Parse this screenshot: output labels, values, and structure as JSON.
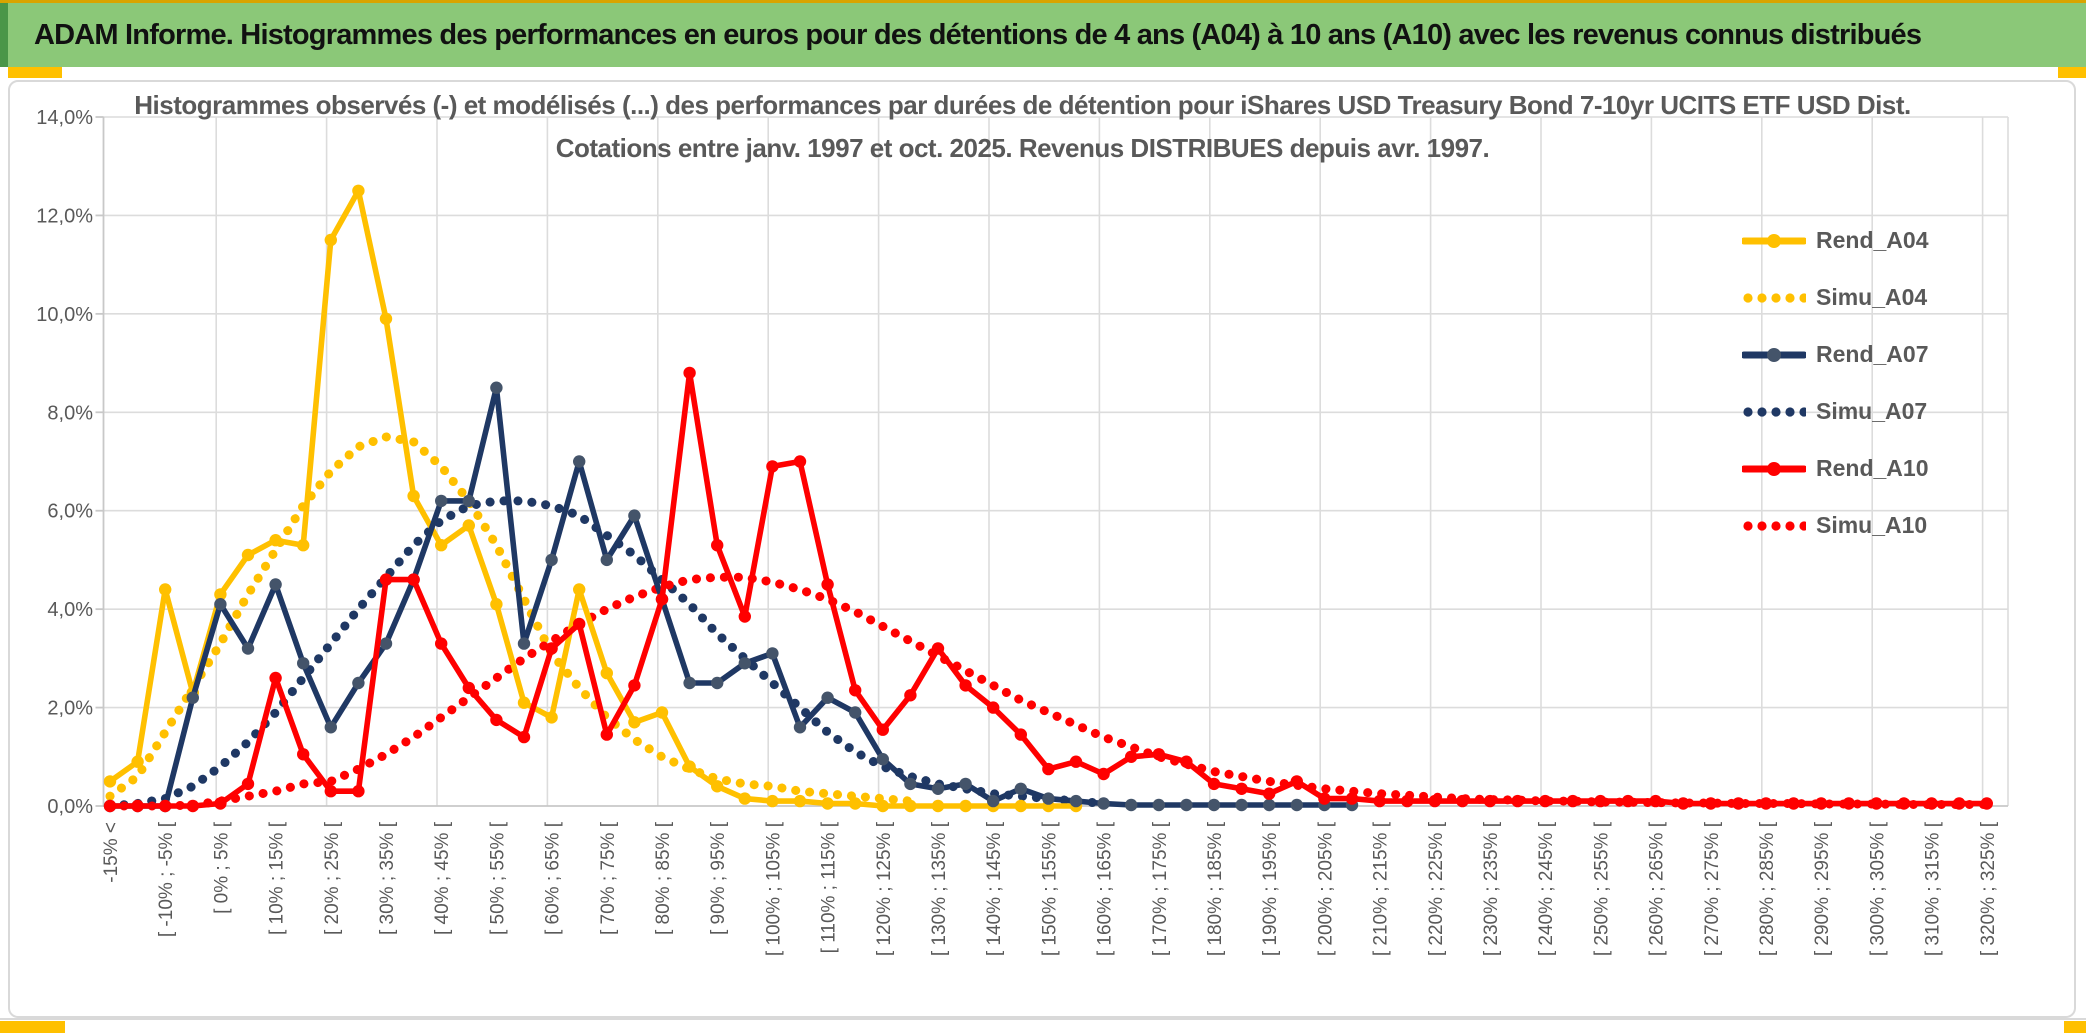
{
  "header": {
    "title": "ADAM Informe. Histogrammes des performances en euros pour des détentions de 4 ans (A04) à 10 ans (A10) avec les revenus connus distribués"
  },
  "chart": {
    "title_line1": "Histogrammes observés (-) et modélisés (...) des performances par durées de détention pour iShares USD Treasury Bond 7-10yr UCITS ETF USD Dist.",
    "title_line2": "Cotations entre janv. 1997 et oct. 2025. Revenus DISTRIBUES depuis avr. 1997."
  },
  "colors": {
    "header_green": "#8bc878",
    "header_green_dark": "#4a9648",
    "accent_gold": "#ffc000",
    "text_gray": "#595959",
    "grid_gray": "#dcdcdc",
    "axis_gray": "#c8c8c8",
    "series_a04": "#ffc000",
    "series_a07": "#1f3864",
    "series_a07_marker": "#44546a",
    "series_a10": "#ff0000"
  },
  "chart_data": {
    "type": "line",
    "bin_width_pct": 5,
    "n_bins": 69,
    "grid": true,
    "legend_position": "right",
    "ylim": [
      0,
      14
    ],
    "y_tick_labels": [
      "0,0%",
      "2,0%",
      "4,0%",
      "6,0%",
      "8,0%",
      "10,0%",
      "12,0%",
      "14,0%"
    ],
    "x_tick_labels": [
      "-15% <",
      "[ -10% ; -5% [",
      "[ 0% ; 5% [",
      "[ 10% ; 15% [",
      "[ 20% ; 25% [",
      "[ 30% ; 35% [",
      "[ 40% ; 45% [",
      "[ 50% ; 55% [",
      "[ 60% ; 65% [",
      "[ 70% ; 75% [",
      "[ 80% ; 85% [",
      "[ 90% ; 95% [",
      "[ 100% ; 105% [",
      "[ 110% ; 115% [",
      "[ 120% ; 125% [",
      "[ 130% ; 135% [",
      "[ 140% ; 145% [",
      "[ 150% ; 155% [",
      "[ 160% ; 165% [",
      "[ 170% ; 175% [",
      "[ 180% ; 185% [",
      "[ 190% ; 195% [",
      "[ 200% ; 205% [",
      "[ 210% ; 215% [",
      "[ 220% ; 225% [",
      "[ 230% ; 235% [",
      "[ 240% ; 245% [",
      "[ 250% ; 255% [",
      "[ 260% ; 265% [",
      "[ 270% ; 275% [",
      "[ 280% ; 285% [",
      "[ 290% ; 295% [",
      "[ 300% ; 305% [",
      "[ 310% ; 315% [",
      "[ 320% ; 325% ["
    ],
    "series": [
      {
        "name": "Rend_A04",
        "style": "solid",
        "color": "#ffc000",
        "marker_color": "#ffc000",
        "values": [
          0.5,
          0.9,
          4.4,
          2.3,
          4.3,
          5.1,
          5.4,
          5.3,
          11.5,
          12.5,
          9.9,
          6.3,
          5.3,
          5.7,
          4.1,
          2.1,
          1.8,
          4.4,
          2.7,
          1.7,
          1.9,
          0.8,
          0.4,
          0.15,
          0.1,
          0.1,
          0.05,
          0.05,
          0,
          0,
          0,
          0,
          0,
          0,
          0,
          0,
          null,
          null,
          null,
          null,
          null,
          null,
          null,
          null,
          null,
          null,
          null,
          null,
          null,
          null,
          null,
          null,
          null,
          null,
          null,
          null,
          null,
          null,
          null,
          null,
          null,
          null,
          null,
          null,
          null,
          null,
          null,
          null,
          null
        ]
      },
      {
        "name": "Simu_A04",
        "style": "dotted",
        "color": "#ffc000",
        "values": [
          0.2,
          0.6,
          1.5,
          2.4,
          3.3,
          4.3,
          5.2,
          6.1,
          6.8,
          7.3,
          7.5,
          7.4,
          6.9,
          6.2,
          5.3,
          4.2,
          3.1,
          2.4,
          1.8,
          1.35,
          1.0,
          0.75,
          0.55,
          0.45,
          0.4,
          0.3,
          0.25,
          0.2,
          0.15,
          0.1,
          null,
          null,
          null,
          null,
          null,
          null,
          null,
          null,
          null,
          null,
          null,
          null,
          null,
          null,
          null,
          null,
          null,
          null,
          null,
          null,
          null,
          null,
          null,
          null,
          null,
          null,
          null,
          null,
          null,
          null,
          null,
          null,
          null,
          null,
          null,
          null,
          null,
          null,
          null
        ]
      },
      {
        "name": "Rend_A07",
        "style": "solid",
        "color": "#1f3864",
        "marker_color": "#44546a",
        "values": [
          0,
          0,
          0,
          2.2,
          4.1,
          3.2,
          4.5,
          2.9,
          1.6,
          2.5,
          3.3,
          4.6,
          6.2,
          6.2,
          8.5,
          3.3,
          5.0,
          7.0,
          5.0,
          5.9,
          4.2,
          2.5,
          2.5,
          2.9,
          3.1,
          1.6,
          2.2,
          1.9,
          0.95,
          0.45,
          0.35,
          0.45,
          0.1,
          0.35,
          0.15,
          0.1,
          0.05,
          0.02,
          0.02,
          0.02,
          0.02,
          0.02,
          0.02,
          0.02,
          0.02,
          0.02,
          null,
          null,
          null,
          null,
          null,
          null,
          null,
          null,
          null,
          null,
          null,
          null,
          null,
          null,
          null,
          null,
          null,
          null,
          null,
          null,
          null,
          null,
          null
        ]
      },
      {
        "name": "Simu_A07",
        "style": "dotted",
        "color": "#1f3864",
        "values": [
          0,
          0.05,
          0.15,
          0.4,
          0.8,
          1.3,
          1.9,
          2.6,
          3.3,
          4.0,
          4.65,
          5.3,
          5.8,
          6.1,
          6.2,
          6.2,
          6.1,
          5.9,
          5.5,
          5.1,
          4.6,
          4.1,
          3.5,
          3.0,
          2.5,
          2.0,
          1.5,
          1.1,
          0.8,
          0.6,
          0.45,
          0.35,
          0.25,
          0.2,
          0.15,
          0.1,
          0.05,
          null,
          null,
          null,
          null,
          null,
          null,
          null,
          null,
          null,
          null,
          null,
          null,
          null,
          null,
          null,
          null,
          null,
          null,
          null,
          null,
          null,
          null,
          null,
          null,
          null,
          null,
          null,
          null,
          null,
          null,
          null,
          null
        ]
      },
      {
        "name": "Rend_A10",
        "style": "solid",
        "color": "#ff0000",
        "marker_color": "#ff0000",
        "values": [
          0,
          0,
          0,
          0,
          0.05,
          0.45,
          2.6,
          1.05,
          0.3,
          0.3,
          4.6,
          4.6,
          3.3,
          2.4,
          1.75,
          1.4,
          3.2,
          3.7,
          1.45,
          2.45,
          4.2,
          8.8,
          5.3,
          3.85,
          6.9,
          7.0,
          4.5,
          2.35,
          1.55,
          2.25,
          3.2,
          2.45,
          2.0,
          1.45,
          0.75,
          0.9,
          0.65,
          1.0,
          1.05,
          0.9,
          0.45,
          0.35,
          0.25,
          0.5,
          0.15,
          0.15,
          0.1,
          0.1,
          0.1,
          0.1,
          0.1,
          0.1,
          0.1,
          0.1,
          0.1,
          0.1,
          0.1,
          0.05,
          0.05,
          0.05,
          0.05,
          0.05,
          0.05,
          0.05,
          0.05,
          0.05,
          0.05,
          0.05,
          0.05
        ]
      },
      {
        "name": "Simu_A10",
        "style": "dotted",
        "color": "#ff0000",
        "values": [
          0,
          0,
          0,
          0.02,
          0.1,
          0.2,
          0.3,
          0.45,
          0.5,
          0.75,
          1.05,
          1.4,
          1.8,
          2.2,
          2.6,
          3.0,
          3.35,
          3.7,
          4.0,
          4.25,
          4.45,
          4.6,
          4.65,
          4.65,
          4.55,
          4.4,
          4.2,
          3.95,
          3.65,
          3.35,
          3.05,
          2.75,
          2.45,
          2.15,
          1.9,
          1.65,
          1.4,
          1.2,
          1.0,
          0.85,
          0.7,
          0.6,
          0.5,
          0.42,
          0.35,
          0.3,
          0.25,
          0.22,
          0.18,
          0.15,
          0.13,
          0.12,
          0.1,
          0.1,
          0.08,
          0.08,
          0.07,
          0.06,
          0.06,
          0.05,
          0.05,
          0.05,
          0.04,
          0.04,
          0.04,
          0.03,
          0.03,
          0.03,
          0.03
        ]
      }
    ]
  }
}
